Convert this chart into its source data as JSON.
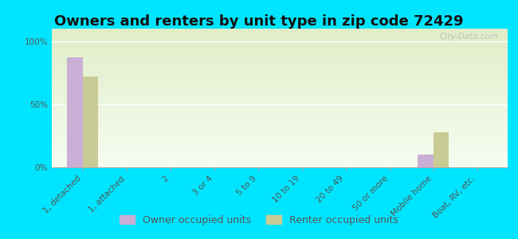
{
  "title": "Owners and renters by unit type in zip code 72429",
  "categories": [
    "1, detached",
    "1, attached",
    "2",
    "3 or 4",
    "5 to 9",
    "10 to 19",
    "20 to 49",
    "50 or more",
    "Mobile home",
    "Boat, RV, etc."
  ],
  "owner_values": [
    87,
    0,
    0,
    0,
    0,
    0,
    0,
    0,
    10,
    0
  ],
  "renter_values": [
    72,
    0,
    0,
    0,
    0,
    0,
    0,
    0,
    28,
    0
  ],
  "owner_color": "#c9aed6",
  "renter_color": "#c8cc94",
  "background_color": "#00e5ff",
  "plot_bg": "#edf2dc",
  "ylabel_ticks": [
    0,
    50,
    100
  ],
  "ylabel_labels": [
    "0%",
    "50%",
    "100%"
  ],
  "legend_owner": "Owner occupied units",
  "legend_renter": "Renter occupied units",
  "bar_width": 0.35,
  "ylim": [
    0,
    110
  ],
  "title_fontsize": 13,
  "tick_fontsize": 7.5,
  "legend_fontsize": 9
}
